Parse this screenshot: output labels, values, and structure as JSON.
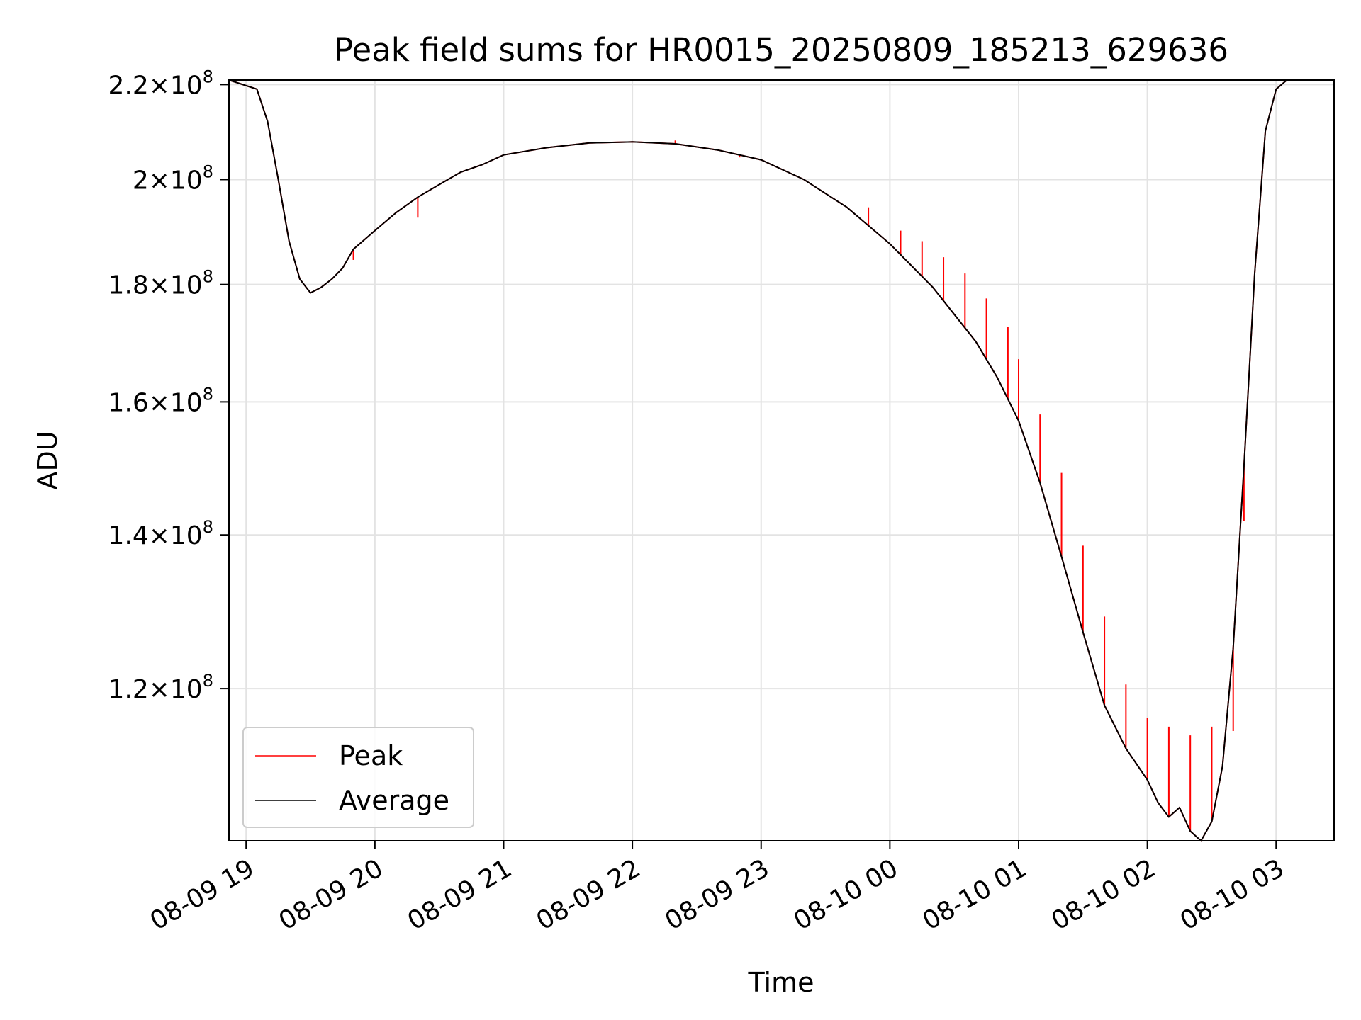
{
  "chart_data": {
    "type": "line",
    "title": "Peak field sums for HR0015_20250809_185213_629636",
    "xlabel": "Time",
    "ylabel": "ADU",
    "y_scale": "log",
    "ylim": [
      103000000,
      221000000
    ],
    "xlim": [
      "2025-08-09 18:52",
      "2025-08-10 03:27"
    ],
    "grid": true,
    "legend_position": "lower-left",
    "x_ticks": [
      {
        "label": "08-09 19",
        "t": "2025-08-09 19:00"
      },
      {
        "label": "08-09 20",
        "t": "2025-08-09 20:00"
      },
      {
        "label": "08-09 21",
        "t": "2025-08-09 21:00"
      },
      {
        "label": "08-09 22",
        "t": "2025-08-09 22:00"
      },
      {
        "label": "08-09 23",
        "t": "2025-08-09 23:00"
      },
      {
        "label": "08-10 00",
        "t": "2025-08-10 00:00"
      },
      {
        "label": "08-10 01",
        "t": "2025-08-10 01:00"
      },
      {
        "label": "08-10 02",
        "t": "2025-08-10 02:00"
      },
      {
        "label": "08-10 03",
        "t": "2025-08-10 03:00"
      }
    ],
    "y_ticks": [
      {
        "mantissa": "2.2",
        "exponent": "8",
        "value": 220000000
      },
      {
        "mantissa": "2",
        "exponent": "8",
        "value": 200000000
      },
      {
        "mantissa": "1.8",
        "exponent": "8",
        "value": 180000000
      },
      {
        "mantissa": "1.6",
        "exponent": "8",
        "value": 160000000
      },
      {
        "mantissa": "1.4",
        "exponent": "8",
        "value": 140000000
      },
      {
        "mantissa": "1.2",
        "exponent": "8",
        "value": 120000000
      }
    ],
    "series": [
      {
        "name": "Average",
        "color": "#000000",
        "x": [
          "2025-08-09 18:52",
          "2025-08-09 19:05",
          "2025-08-09 19:10",
          "2025-08-09 19:15",
          "2025-08-09 19:20",
          "2025-08-09 19:25",
          "2025-08-09 19:30",
          "2025-08-09 19:35",
          "2025-08-09 19:40",
          "2025-08-09 19:45",
          "2025-08-09 19:50",
          "2025-08-09 20:00",
          "2025-08-09 20:10",
          "2025-08-09 20:20",
          "2025-08-09 20:30",
          "2025-08-09 20:40",
          "2025-08-09 20:50",
          "2025-08-09 21:00",
          "2025-08-09 21:20",
          "2025-08-09 21:40",
          "2025-08-09 22:00",
          "2025-08-09 22:20",
          "2025-08-09 22:40",
          "2025-08-09 23:00",
          "2025-08-09 23:20",
          "2025-08-09 23:40",
          "2025-08-10 00:00",
          "2025-08-10 00:20",
          "2025-08-10 00:40",
          "2025-08-10 00:50",
          "2025-08-10 01:00",
          "2025-08-10 01:10",
          "2025-08-10 01:20",
          "2025-08-10 01:30",
          "2025-08-10 01:40",
          "2025-08-10 01:50",
          "2025-08-10 02:00",
          "2025-08-10 02:05",
          "2025-08-10 02:10",
          "2025-08-10 02:15",
          "2025-08-10 02:20",
          "2025-08-10 02:25",
          "2025-08-10 02:30",
          "2025-08-10 02:35",
          "2025-08-10 02:40",
          "2025-08-10 02:45",
          "2025-08-10 02:50",
          "2025-08-10 02:55",
          "2025-08-10 03:00",
          "2025-08-10 03:05",
          "2025-08-10 03:27"
        ],
        "y": [
          221000000,
          219000000,
          212000000,
          200000000,
          188000000,
          181000000,
          178500000,
          179500000,
          181000000,
          183000000,
          186500000,
          190000000,
          193500000,
          196500000,
          199000000,
          201500000,
          203000000,
          205000000,
          206500000,
          207500000,
          207700000,
          207300000,
          206000000,
          204000000,
          200000000,
          194500000,
          187500000,
          179500000,
          170000000,
          164000000,
          157000000,
          147500000,
          137000000,
          127000000,
          118000000,
          113000000,
          109500000,
          107000000,
          105500000,
          106500000,
          104000000,
          103000000,
          105000000,
          111000000,
          125000000,
          150000000,
          182000000,
          210000000,
          219000000,
          221000000,
          221000000
        ]
      },
      {
        "name": "Peak",
        "color": "#ff0000",
        "x": [
          "2025-08-09 19:50",
          "2025-08-09 20:20",
          "2025-08-09 22:20",
          "2025-08-09 22:50",
          "2025-08-09 23:50",
          "2025-08-10 00:05",
          "2025-08-10 00:15",
          "2025-08-10 00:25",
          "2025-08-10 00:35",
          "2025-08-10 00:45",
          "2025-08-10 00:55",
          "2025-08-10 01:00",
          "2025-08-10 01:10",
          "2025-08-10 01:20",
          "2025-08-10 01:30",
          "2025-08-10 01:40",
          "2025-08-10 01:50",
          "2025-08-10 02:00",
          "2025-08-10 02:10",
          "2025-08-10 02:20",
          "2025-08-10 02:30",
          "2025-08-10 02:40",
          "2025-08-10 02:45"
        ],
        "y": [
          184500000,
          192500000,
          208000000,
          204500000,
          194500000,
          190000000,
          188000000,
          185000000,
          182000000,
          177500000,
          172500000,
          167000000,
          158000000,
          149000000,
          138500000,
          129000000,
          120500000,
          116500000,
          115500000,
          114500000,
          115500000,
          115000000,
          142000000
        ]
      }
    ]
  }
}
